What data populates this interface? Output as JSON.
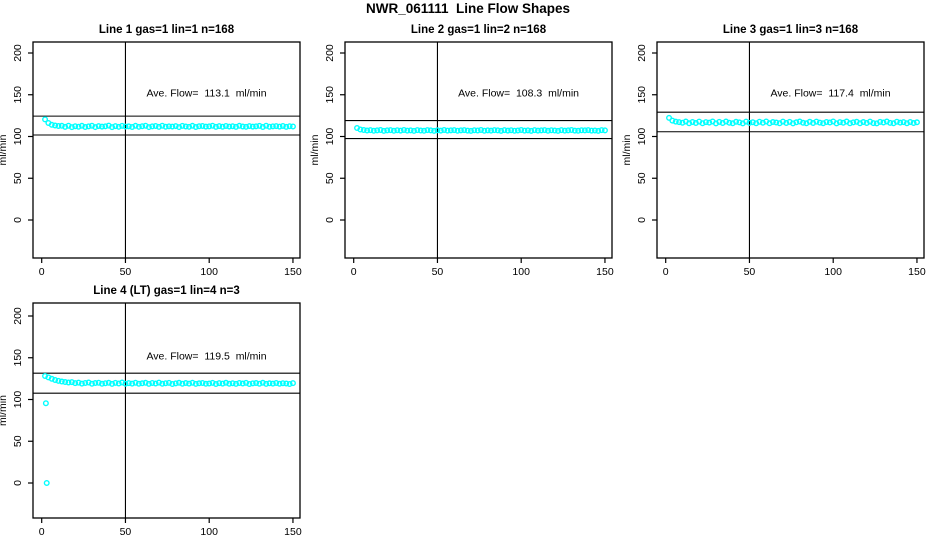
{
  "page_title": "NWR_061111  Line Flow Shapes",
  "colors": {
    "data_point": "#00ffff",
    "axis": "#000000",
    "background": "#ffffff"
  },
  "axis": {
    "ylabel": "ml/min",
    "y_ticks": [
      0,
      50,
      100,
      150,
      200
    ],
    "x_ticks": [
      0,
      50,
      100,
      150
    ],
    "ylim": [
      0,
      200
    ],
    "xlim": [
      0,
      150
    ],
    "grid": false
  },
  "chart_data": [
    {
      "type": "scatter",
      "title": "Line 1 gas=1 lin=1 n=168",
      "ave_flow_label": "Ave. Flow=  113.1  ml/min",
      "ave_flow": 113.1,
      "n": 168,
      "ref_lines": [
        124.4,
        101.8
      ],
      "vline_x": 50,
      "marker": "open-circle",
      "points": {
        "x_start": 2,
        "x_step": 2,
        "y": [
          120.5,
          116.2,
          114.0,
          113.2,
          112.6,
          112.8,
          111.5,
          112.9,
          111.2,
          112.3,
          111.7,
          112.8,
          111.4,
          112.1,
          112.9,
          111.3,
          112.5,
          111.8,
          112.2,
          113.0,
          111.2,
          112.4,
          111.6,
          112.7,
          111.9,
          112.2,
          111.4,
          112.8,
          111.6,
          112.3,
          112.9,
          111.3,
          112.1,
          112.6,
          111.5,
          112.9,
          111.7,
          112.2,
          111.9,
          112.5,
          111.3,
          112.7,
          112.0,
          111.6,
          112.8,
          111.4,
          112.3,
          112.6,
          111.8,
          112.1,
          112.9,
          111.5,
          112.4,
          111.7,
          112.6,
          111.9,
          112.3,
          111.5,
          112.8,
          112.0,
          111.6,
          112.5,
          111.8,
          112.2,
          112.7,
          111.4,
          112.9,
          111.7,
          112.1,
          112.4,
          111.8,
          112.6,
          111.5,
          112.3,
          112.0
        ]
      },
      "extra_points": []
    },
    {
      "type": "scatter",
      "title": "Line 2 gas=1 lin=2 n=168",
      "ave_flow_label": "Ave. Flow=  108.3  ml/min",
      "ave_flow": 108.3,
      "n": 168,
      "ref_lines": [
        119.1,
        97.5
      ],
      "vline_x": 50,
      "marker": "open-circle",
      "points": {
        "x_start": 2,
        "x_step": 2,
        "y": [
          110.2,
          108.4,
          107.8,
          107.2,
          107.6,
          106.9,
          107.4,
          107.8,
          106.8,
          107.3,
          107.7,
          106.9,
          107.5,
          107.1,
          107.8,
          107.0,
          107.4,
          106.8,
          107.6,
          107.2,
          106.9,
          107.7,
          107.3,
          106.8,
          107.5,
          107.1,
          107.8,
          107.0,
          107.4,
          107.6,
          106.9,
          107.3,
          107.7,
          107.1,
          106.8,
          107.5,
          107.2,
          107.8,
          106.9,
          107.4,
          107.0,
          107.6,
          107.3,
          106.8,
          107.7,
          107.1,
          107.5,
          106.9,
          107.2,
          107.8,
          107.0,
          107.4,
          106.8,
          107.6,
          107.1,
          107.3,
          107.7,
          106.9,
          107.5,
          107.2,
          106.8,
          107.6,
          107.0,
          107.4,
          107.8,
          107.1,
          106.9,
          107.5,
          107.3,
          107.7,
          107.0,
          107.2,
          106.8,
          107.6,
          107.4
        ]
      },
      "extra_points": []
    },
    {
      "type": "scatter",
      "title": "Line 3 gas=1 lin=3 n=168",
      "ave_flow_label": "Ave. Flow=  117.4  ml/min",
      "ave_flow": 117.4,
      "n": 168,
      "ref_lines": [
        129.1,
        105.7
      ],
      "vline_x": 50,
      "marker": "open-circle",
      "points": {
        "x_start": 2,
        "x_step": 2,
        "y": [
          122.3,
          119.0,
          117.8,
          117.2,
          116.5,
          117.9,
          115.8,
          117.4,
          116.1,
          117.8,
          115.9,
          117.2,
          116.6,
          118.0,
          115.7,
          117.5,
          116.2,
          117.9,
          116.4,
          115.8,
          117.6,
          116.9,
          115.7,
          117.8,
          116.3,
          117.1,
          115.9,
          117.7,
          116.5,
          118.0,
          115.8,
          117.3,
          116.7,
          115.9,
          117.8,
          116.2,
          117.5,
          115.7,
          117.0,
          117.9,
          116.4,
          115.8,
          117.6,
          116.1,
          117.8,
          116.6,
          115.9,
          117.4,
          116.8,
          118.0,
          115.7,
          117.2,
          116.5,
          117.9,
          115.8,
          116.9,
          117.6,
          115.9,
          117.3,
          116.2,
          117.8,
          116.0,
          115.7,
          117.5,
          116.8,
          117.9,
          116.3,
          115.8,
          117.7,
          116.6,
          117.2,
          115.9,
          117.4,
          116.1,
          117.0
        ]
      },
      "extra_points": []
    },
    {
      "type": "scatter",
      "title": "Line 4 (LT) gas=1 lin=4 n=3",
      "ave_flow_label": "Ave. Flow=  119.5  ml/min",
      "ave_flow": 119.5,
      "n": 3,
      "ref_lines": [
        131.5,
        107.6
      ],
      "vline_x": 50,
      "marker": "open-circle",
      "points": {
        "x_start": 2,
        "x_step": 2,
        "y": [
          128.2,
          126.5,
          124.8,
          123.4,
          122.3,
          121.5,
          120.9,
          120.4,
          120.8,
          119.6,
          120.2,
          119.0,
          119.8,
          120.4,
          118.9,
          119.7,
          120.1,
          118.8,
          119.5,
          120.0,
          118.7,
          119.9,
          119.2,
          120.3,
          118.8,
          119.6,
          119.0,
          120.1,
          118.9,
          119.4,
          120.0,
          118.7,
          119.8,
          119.1,
          120.2,
          118.8,
          119.5,
          119.9,
          118.6,
          119.3,
          120.0,
          118.9,
          119.7,
          119.0,
          120.1,
          118.7,
          119.4,
          119.8,
          118.8,
          119.2,
          119.9,
          118.6,
          119.6,
          119.0,
          120.0,
          118.8,
          119.5,
          118.7,
          119.8,
          119.1,
          119.9,
          118.6,
          119.3,
          119.7,
          118.9,
          120.0,
          118.7,
          119.4,
          119.0,
          119.8,
          118.8,
          119.5,
          119.2,
          118.6,
          119.6
        ]
      },
      "extra_points": [
        [
          2.5,
          95.5
        ],
        [
          3,
          0
        ]
      ]
    }
  ]
}
